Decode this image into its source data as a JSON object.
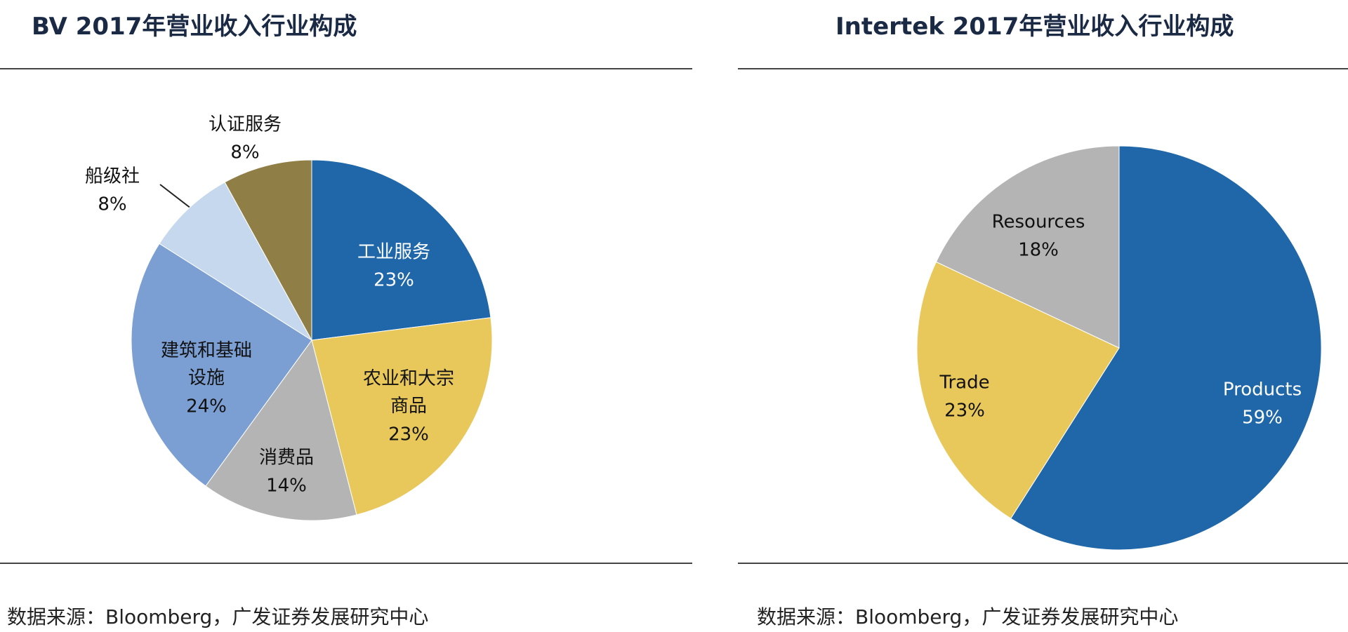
{
  "chart_data": [
    {
      "type": "pie",
      "title": "BV 2017年营业收入行业构成",
      "categories": [
        "工业服务",
        "农业和大宗\n商品",
        "消费品",
        "建筑和基础\n设施",
        "船级社",
        "认证服务"
      ],
      "values": [
        23,
        23,
        14,
        24,
        8,
        8
      ],
      "value_labels": [
        "23%",
        "23%",
        "14%",
        "24%",
        "8%",
        "8%"
      ],
      "colors": [
        "#1f67a8",
        "#e8c85a",
        "#b4b4b4",
        "#7b9fd3",
        "#c6d8ee",
        "#8f7f46"
      ],
      "source": "数据来源：Bloomberg，广发证券发展研究中心"
    },
    {
      "type": "pie",
      "title": "Intertek 2017年营业收入行业构成",
      "categories": [
        "Products",
        "Trade",
        "Resources"
      ],
      "values": [
        59,
        23,
        18
      ],
      "value_labels": [
        "59%",
        "23%",
        "18%"
      ],
      "colors": [
        "#1f67a8",
        "#e8c85a",
        "#b4b4b4"
      ],
      "source": "数据来源：Bloomberg，广发证券发展研究中心"
    }
  ]
}
